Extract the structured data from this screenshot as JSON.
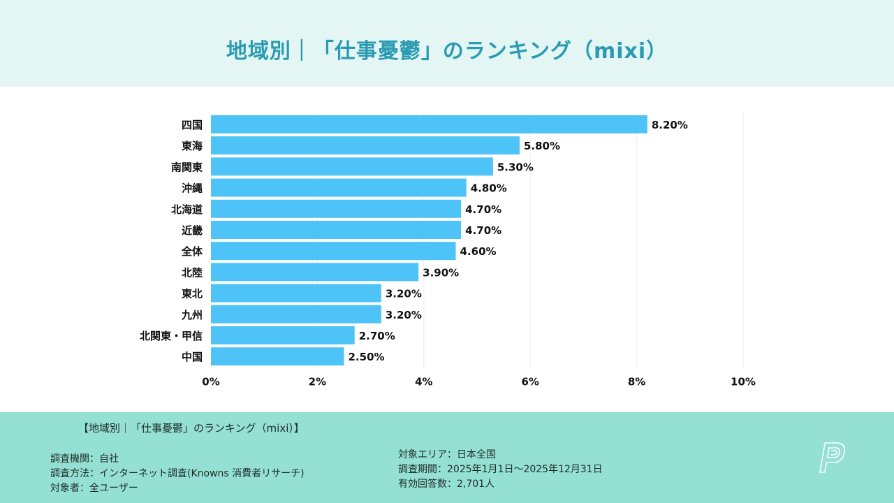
{
  "header": {
    "title": "地域別｜「仕事憂鬱」のランキング（mixi）"
  },
  "chart_data": {
    "type": "bar",
    "orientation": "horizontal",
    "title": "地域別｜「仕事憂鬱」のランキング（mixi）",
    "xlabel": "",
    "ylabel": "",
    "categories": [
      "四国",
      "東海",
      "南関東",
      "沖縄",
      "北海道",
      "近畿",
      "全体",
      "北陸",
      "東北",
      "九州",
      "北関東・甲信",
      "中国"
    ],
    "values": [
      8.2,
      5.8,
      5.3,
      4.8,
      4.7,
      4.7,
      4.6,
      3.9,
      3.2,
      3.2,
      2.7,
      2.5
    ],
    "value_labels": [
      "8.20%",
      "5.80%",
      "5.30%",
      "4.80%",
      "4.70%",
      "4.70%",
      "4.60%",
      "3.90%",
      "3.20%",
      "3.20%",
      "2.70%",
      "2.50%"
    ],
    "xlim": [
      0,
      10
    ],
    "xticks": [
      0,
      2,
      4,
      6,
      8,
      10
    ],
    "xtick_labels": [
      "0%",
      "2%",
      "4%",
      "6%",
      "8%",
      "10%"
    ],
    "grid": true,
    "legend": "none",
    "bar_color": "#4dc3f7"
  },
  "footer": {
    "title": "【地域別｜「仕事憂鬱」のランキング（mixi）】",
    "left": [
      "調査機関：自社",
      "調査方法：インターネット調査(Knowns 消費者リサーチ)",
      "対象者：全ユーザー"
    ],
    "right": [
      "対象エリア：日本全国",
      "調査期間：2025年1月1日～2025年12月31日",
      "有効回答数：2,701人"
    ]
  },
  "logo": {
    "icon": "p-logo-icon"
  },
  "colors": {
    "title": "#2b9bb3",
    "header_bg": "#e3f6f3",
    "footer_bg": "#94e0d2",
    "bar": "#4dc3f7"
  }
}
